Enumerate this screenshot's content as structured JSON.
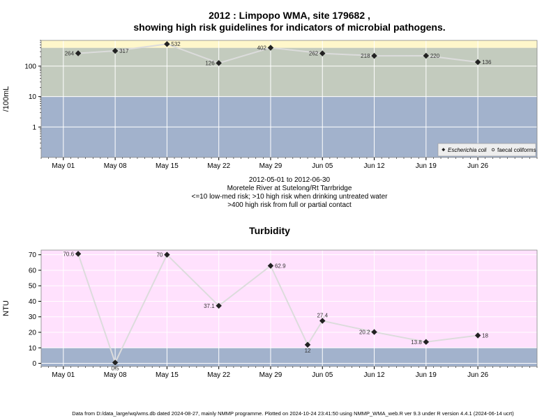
{
  "header": {
    "title_line1": "2012 : Limpopo WMA, site 179682 ,",
    "title_line2": "showing high risk guidelines for indicators of microbial pathogens."
  },
  "subtitle": {
    "line1": "2012-05-01 to 2012-06-30",
    "line2": "Moretele River at Sutelong/Rt Tarrbridge",
    "line3": "<=10 low-med risk; >10 high risk when drinking untreated water",
    "line4": ">400 high risk from full or partial contact"
  },
  "footer": "Data from D:/data_large/wq/wms.db dated 2024-08-27, mainly NMMP programme. Plotted on 2024-10-24 23:41:50 using NMMP_WMA_web.R ver 9.3 under R version 4.4.1 (2024-06-14 ucrt)",
  "colors": {
    "band_low": "#a2b2cc",
    "band_mid": "#c3cbbe",
    "band_high": "#fff7cb",
    "band_pink": "#ffe1fd",
    "line": "#dcdcdc",
    "grid": "#ffffff",
    "marker": "#222222"
  },
  "chart_data": [
    {
      "type": "line",
      "title": "",
      "ylabel": "/100mL",
      "yscale": "log",
      "yticks": [
        1,
        10,
        100
      ],
      "ytick_labels": [
        "1",
        "10",
        "100"
      ],
      "ylim": [
        0.1,
        700
      ],
      "xlim": [
        "2012-04-28",
        "2012-07-04"
      ],
      "xticks": [
        "2012-05-01",
        "2012-05-08",
        "2012-05-15",
        "2012-05-22",
        "2012-05-29",
        "2012-06-05",
        "2012-06-12",
        "2012-06-19",
        "2012-06-26"
      ],
      "xtick_labels": [
        "May 01",
        "May 08",
        "May 15",
        "May 22",
        "May 29",
        "Jun 05",
        "Jun 12",
        "Jun 19",
        "Jun 26"
      ],
      "bands": [
        {
          "from": 0.1,
          "to": 10,
          "color": "#a2b2cc"
        },
        {
          "from": 10,
          "to": 400,
          "color": "#c3cbbe"
        },
        {
          "from": 400,
          "to": 700,
          "color": "#fff7cb"
        }
      ],
      "legend": {
        "position": "bottom-right",
        "entries": [
          {
            "label": "Escherichia coli",
            "italic": true
          },
          {
            "label": "faecal coliforms",
            "italic": false
          }
        ]
      },
      "series": [
        {
          "name": "Escherichia coli",
          "x": [
            "2012-05-03",
            "2012-05-08",
            "2012-05-15",
            "2012-05-22",
            "2012-05-29",
            "2012-06-05",
            "2012-06-12",
            "2012-06-19",
            "2012-06-26"
          ],
          "y": [
            264,
            317,
            532,
            126,
            402,
            262,
            218,
            220,
            136
          ],
          "labels": [
            "264",
            "317",
            "532",
            "126",
            "402",
            "262",
            "218",
            "220",
            "136"
          ],
          "label_side": [
            "left",
            "right",
            "right",
            "left",
            "left",
            "left",
            "left",
            "right",
            "right"
          ]
        }
      ]
    },
    {
      "type": "line",
      "title": "Turbidity",
      "ylabel": "NTU",
      "ylim": [
        -2,
        73
      ],
      "yticks": [
        0,
        10,
        20,
        30,
        40,
        50,
        60,
        70
      ],
      "ytick_labels": [
        "0",
        "10",
        "20",
        "30",
        "40",
        "50",
        "60",
        "70"
      ],
      "xlim": [
        "2012-04-28",
        "2012-07-04"
      ],
      "xticks": [
        "2012-05-01",
        "2012-05-08",
        "2012-05-15",
        "2012-05-22",
        "2012-05-29",
        "2012-06-05",
        "2012-06-12",
        "2012-06-19",
        "2012-06-26"
      ],
      "xtick_labels": [
        "May 01",
        "May 08",
        "May 15",
        "May 22",
        "May 29",
        "Jun 05",
        "Jun 12",
        "Jun 19",
        "Jun 26"
      ],
      "bands": [
        {
          "from": -2,
          "to": 10,
          "color": "#a2b2cc"
        },
        {
          "from": 10,
          "to": 73,
          "color": "#ffe1fd"
        }
      ],
      "series": [
        {
          "name": "Turbidity",
          "x": [
            "2012-05-03",
            "2012-05-08",
            "2012-05-15",
            "2012-05-22",
            "2012-05-29",
            "2012-06-03",
            "2012-06-05",
            "2012-06-12",
            "2012-06-19",
            "2012-06-26"
          ],
          "y": [
            70.6,
            0.5,
            70,
            37.1,
            62.9,
            12,
            27.4,
            20.2,
            13.8,
            18
          ],
          "labels": [
            "70.6",
            "0.5",
            "70",
            "37.1",
            "62.9",
            "12",
            "27.4",
            "20.2",
            "13.8",
            "18"
          ],
          "label_side": [
            "left",
            "below",
            "left",
            "left",
            "right",
            "below",
            "above",
            "left",
            "left",
            "right"
          ]
        }
      ]
    }
  ]
}
